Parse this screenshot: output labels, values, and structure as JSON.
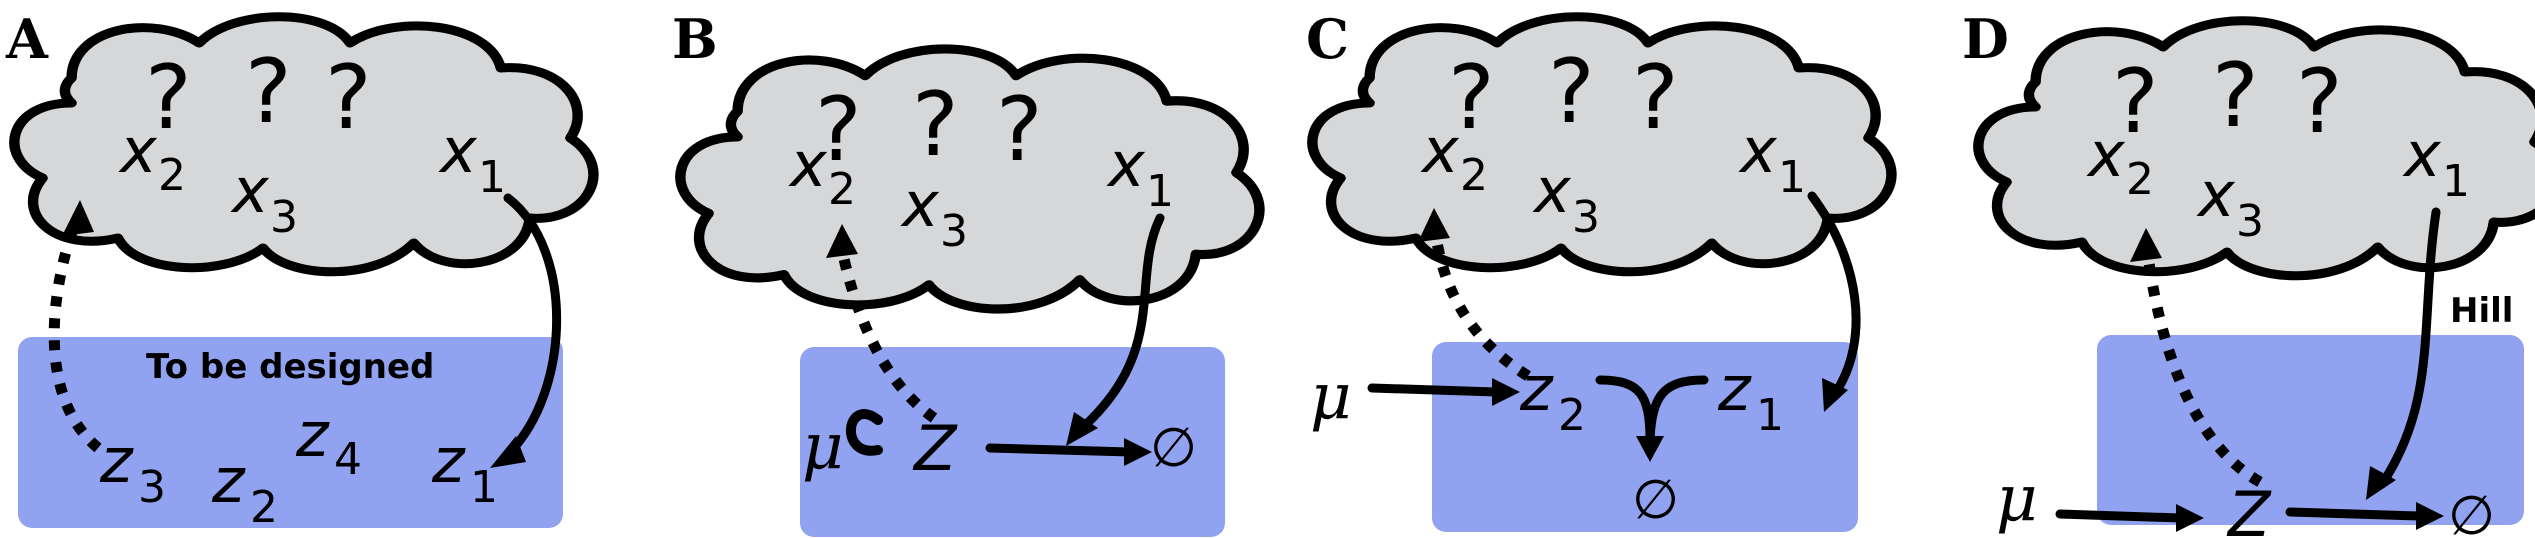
{
  "panels": [
    {
      "label": "A",
      "question_marks": [
        "?",
        "?",
        "?"
      ],
      "hidden_vars": [
        {
          "name": "x",
          "sub": "2"
        },
        {
          "name": "x",
          "sub": "3"
        },
        {
          "name": "x",
          "sub": "1"
        }
      ],
      "box_title": "To be designed",
      "controller_vars": [
        {
          "name": "z",
          "sub": "3"
        },
        {
          "name": "z",
          "sub": "2"
        },
        {
          "name": "z",
          "sub": "4"
        },
        {
          "name": "z",
          "sub": "1"
        }
      ]
    },
    {
      "label": "B",
      "question_marks": [
        "?",
        "?",
        "?"
      ],
      "hidden_vars": [
        {
          "name": "x",
          "sub": "2"
        },
        {
          "name": "x",
          "sub": "3"
        },
        {
          "name": "x",
          "sub": "1"
        }
      ],
      "mu": "μ",
      "z": "Z",
      "empty_set": "∅"
    },
    {
      "label": "C",
      "question_marks": [
        "?",
        "?",
        "?"
      ],
      "hidden_vars": [
        {
          "name": "x",
          "sub": "2"
        },
        {
          "name": "x",
          "sub": "3"
        },
        {
          "name": "x",
          "sub": "1"
        }
      ],
      "mu": "μ",
      "controller_vars": [
        {
          "name": "z",
          "sub": "2"
        },
        {
          "name": "z",
          "sub": "1"
        }
      ],
      "empty_set": "∅"
    },
    {
      "label": "D",
      "question_marks": [
        "?",
        "?",
        "?"
      ],
      "hidden_vars": [
        {
          "name": "x",
          "sub": "2"
        },
        {
          "name": "x",
          "sub": "3"
        },
        {
          "name": "x",
          "sub": "1"
        }
      ],
      "mu": "μ",
      "z": "Z",
      "empty_set": "∅",
      "edge_label": "Hill"
    }
  ],
  "colors": {
    "cloud_fill": "#d6d7d9",
    "box_fill": "#91a3f0",
    "ink": "#000000"
  }
}
